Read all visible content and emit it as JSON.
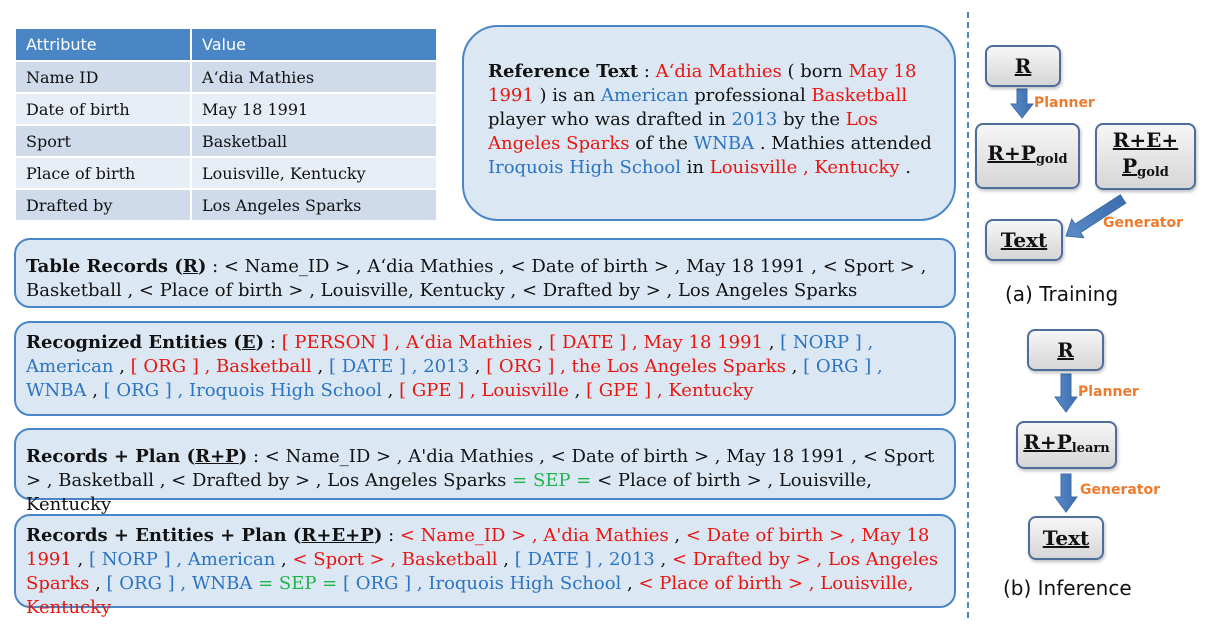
{
  "table": {
    "headers": [
      "Attribute",
      "Value"
    ],
    "rows": [
      [
        "Name ID",
        "A‘dia Mathies"
      ],
      [
        "Date of birth",
        "May 18 1991"
      ],
      [
        "Sport",
        "Basketball"
      ],
      [
        "Place of birth",
        "Louisville, Kentucky"
      ],
      [
        "Drafted by",
        "Los Angeles Sparks"
      ]
    ]
  },
  "reference": {
    "label": "Reference Text",
    "segments": [
      {
        "t": "A‘dia Mathies",
        "c": "red"
      },
      {
        "t": " ( born ",
        "c": ""
      },
      {
        "t": "May 18 1991",
        "c": "red"
      },
      {
        "t": " ) is an ",
        "c": ""
      },
      {
        "t": "American",
        "c": "blue"
      },
      {
        "t": " professional ",
        "c": ""
      },
      {
        "t": "Basketball",
        "c": "red"
      },
      {
        "t": " player who was drafted in ",
        "c": ""
      },
      {
        "t": "2013",
        "c": "blue"
      },
      {
        "t": " by the ",
        "c": ""
      },
      {
        "t": "Los Angeles Sparks",
        "c": "red"
      },
      {
        "t": " of the ",
        "c": ""
      },
      {
        "t": "WNBA",
        "c": "blue"
      },
      {
        "t": " . Mathies attended ",
        "c": ""
      },
      {
        "t": "Iroquois High School",
        "c": "blue"
      },
      {
        "t": " in ",
        "c": ""
      },
      {
        "t": "Louisville , Kentucky",
        "c": "red"
      },
      {
        "t": " .",
        "c": ""
      }
    ]
  },
  "boxes": [
    {
      "label_pre": "Table Records (",
      "label_u": "R",
      "label_post": ")",
      "segments": [
        {
          "t": " : < Name_ID > ,  A‘dia Mathies  , < Date of birth > , May 18 1991 ,  < Sport > , Basketball ,   < Place of birth > , Louisville, Kentucky ,  < Drafted by > ,  Los Angeles Sparks",
          "c": ""
        }
      ]
    },
    {
      "label_pre": "Recognized Entities (",
      "label_u": "E",
      "label_post": ")",
      "segments": [
        {
          "t": " : ",
          "c": ""
        },
        {
          "t": "[ PERSON ] , A‘dia Mathies",
          "c": "red"
        },
        {
          "t": " , ",
          "c": ""
        },
        {
          "t": "[ DATE ] , May 18 1991",
          "c": "red"
        },
        {
          "t": " , ",
          "c": ""
        },
        {
          "t": "[ NORP ] , American",
          "c": "blue"
        },
        {
          "t": " , ",
          "c": ""
        },
        {
          "t": "[ ORG ] , Basketball",
          "c": "red"
        },
        {
          "t": " , ",
          "c": ""
        },
        {
          "t": "[ DATE ] , 2013",
          "c": "blue"
        },
        {
          "t": " , ",
          "c": ""
        },
        {
          "t": "[ ORG ] , the Los Angeles Sparks",
          "c": "red"
        },
        {
          "t": " , ",
          "c": ""
        },
        {
          "t": "[ ORG ] , WNBA",
          "c": "blue"
        },
        {
          "t": " , ",
          "c": ""
        },
        {
          "t": "[ ORG ] , Iroquois High School",
          "c": "blue"
        },
        {
          "t": " , ",
          "c": ""
        },
        {
          "t": "[ GPE ] , Louisville",
          "c": "red"
        },
        {
          "t": " , ",
          "c": ""
        },
        {
          "t": "[ GPE ] , Kentucky",
          "c": "red"
        }
      ]
    },
    {
      "label_pre": "Records + Plan (",
      "label_u": "R+P",
      "label_post": ")",
      "segments": [
        {
          "t": " : < Name_ID > , A'dia Mathies , < Date of birth > , May 18 1991 , < Sport > , Basketball , < Drafted by > , Los Angeles Sparks ",
          "c": ""
        },
        {
          "t": "= SEP =",
          "c": "green"
        },
        {
          "t": " < Place of birth > , Louisville, Kentucky",
          "c": ""
        }
      ]
    },
    {
      "label_pre": "Records + Entities + Plan (",
      "label_u": "R+E+P",
      "label_post": ")",
      "segments": [
        {
          "t": " : ",
          "c": ""
        },
        {
          "t": "< Name_ID > ,  A'dia Mathies",
          "c": "red"
        },
        {
          "t": " , ",
          "c": ""
        },
        {
          "t": "< Date of birth > , May 18 1991",
          "c": "red"
        },
        {
          "t": " , ",
          "c": ""
        },
        {
          "t": "[ NORP ] , American",
          "c": "blue"
        },
        {
          "t": " , ",
          "c": ""
        },
        {
          "t": "< Sport > , Basketball",
          "c": "red"
        },
        {
          "t": " , ",
          "c": ""
        },
        {
          "t": "[ DATE ] , 2013",
          "c": "blue"
        },
        {
          "t": " , ",
          "c": ""
        },
        {
          "t": "< Drafted by > , Los Angeles Sparks",
          "c": "red"
        },
        {
          "t": " , ",
          "c": ""
        },
        {
          "t": "[ ORG ] , WNBA",
          "c": "blue"
        },
        {
          "t": " ",
          "c": ""
        },
        {
          "t": "= SEP =",
          "c": "green"
        },
        {
          "t": " ",
          "c": ""
        },
        {
          "t": "[ ORG ] , Iroquois High School",
          "c": "blue"
        },
        {
          "t": " , ",
          "c": ""
        },
        {
          "t": "< Place of birth > , Louisville, Kentucky",
          "c": "red"
        }
      ]
    }
  ],
  "diagram": {
    "training": {
      "node_r": "R",
      "planner": "Planner",
      "node_rp_main": "R+P",
      "node_rp_sub": "gold",
      "node_rep_line1": "R+E+",
      "node_rep_main": "P",
      "node_rep_sub": "gold",
      "generator": "Generator",
      "node_text": "Text",
      "caption": "(a)  Training"
    },
    "inference": {
      "node_r": "R",
      "planner": "Planner",
      "node_rp_main": "R+P",
      "node_rp_sub": "learn",
      "generator": "Generator",
      "node_text": "Text",
      "caption": "(b)  Inference"
    }
  },
  "colors": {
    "red": "#e8150f",
    "blue": "#2a74c2",
    "green": "#22b24c",
    "box_fill": "#dce7f4",
    "box_border": "#4a86c5",
    "table_header": "#4a86c5",
    "tag_orange": "#ef7a2c"
  }
}
